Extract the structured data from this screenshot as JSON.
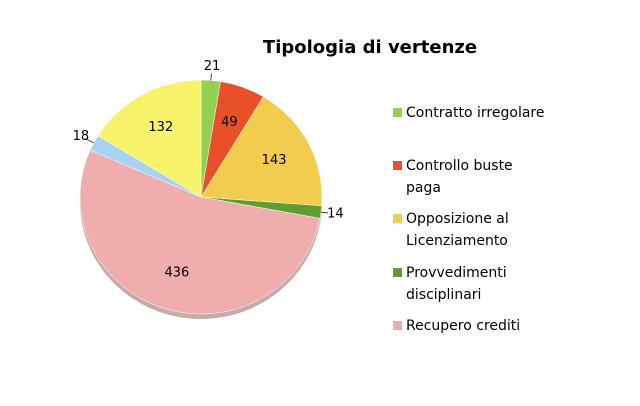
{
  "chart_data": {
    "type": "pie",
    "title": "Tipologia di vertenze",
    "categories": [
      "Contratto irregolare",
      "Controllo buste paga",
      "Opposizione al Licenziamento",
      "Provvedimenti disciplinari",
      "Recupero crediti",
      null,
      null
    ],
    "values": [
      21,
      49,
      143,
      14,
      436,
      18,
      132
    ],
    "colors": [
      "#92d050",
      "#e8502a",
      "#f2cc4f",
      "#5e9e30",
      "#f0adad",
      "#a9d3f2",
      "#f7f46b"
    ]
  }
}
